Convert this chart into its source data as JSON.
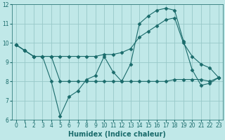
{
  "xlabel": "Humidex (Indice chaleur)",
  "xlim": [
    -0.5,
    23.5
  ],
  "ylim": [
    6,
    12
  ],
  "yticks": [
    6,
    7,
    8,
    9,
    10,
    11,
    12
  ],
  "xticks": [
    0,
    1,
    2,
    3,
    4,
    5,
    6,
    7,
    8,
    9,
    10,
    11,
    12,
    13,
    14,
    15,
    16,
    17,
    18,
    19,
    20,
    21,
    22,
    23
  ],
  "bg_color": "#c0e8e8",
  "grid_color": "#98c8c8",
  "line_color": "#1a6b6b",
  "line1_y": [
    9.9,
    9.6,
    9.3,
    9.3,
    8.0,
    6.2,
    7.2,
    7.5,
    8.1,
    8.3,
    9.3,
    8.5,
    8.0,
    8.9,
    11.0,
    11.4,
    11.7,
    11.8,
    11.7,
    10.1,
    8.6,
    7.8,
    7.9,
    8.2
  ],
  "line2_y": [
    9.9,
    9.6,
    9.3,
    9.3,
    9.3,
    9.3,
    9.3,
    9.3,
    9.3,
    9.3,
    9.4,
    9.4,
    9.5,
    9.7,
    10.3,
    10.6,
    10.9,
    11.2,
    11.3,
    10.0,
    9.3,
    8.9,
    8.7,
    8.2
  ],
  "line3_y": [
    9.9,
    9.6,
    9.3,
    9.3,
    9.3,
    8.0,
    8.0,
    8.0,
    8.0,
    8.0,
    8.0,
    8.0,
    8.0,
    8.0,
    8.0,
    8.0,
    8.0,
    8.0,
    8.1,
    8.1,
    8.1,
    8.1,
    8.0,
    8.2
  ],
  "marker": "D",
  "marker_size": 2.5,
  "line_width": 0.8,
  "tick_fontsize": 5.5,
  "xlabel_fontsize": 7
}
